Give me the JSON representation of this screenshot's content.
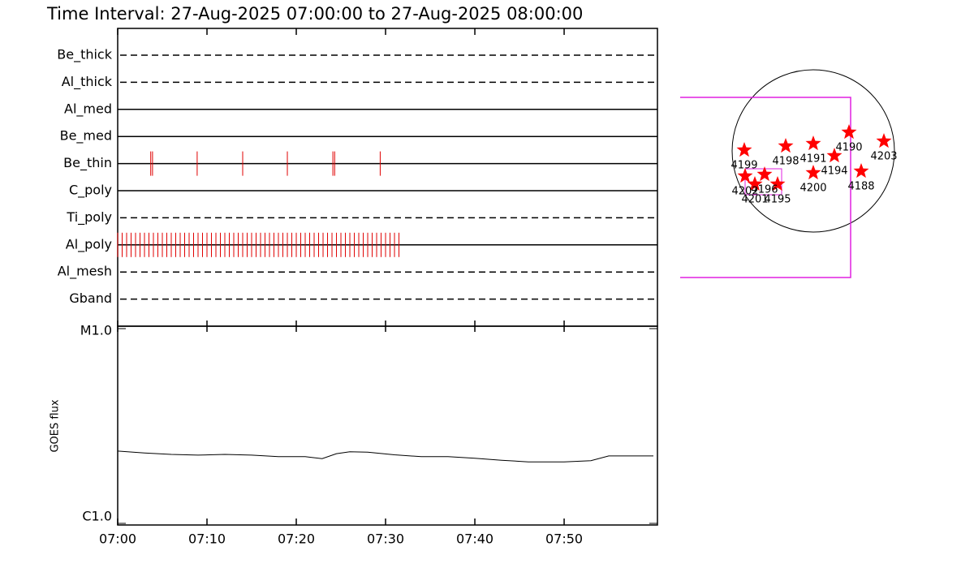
{
  "chart_data": [
    {
      "type": "timeline",
      "title": "Time Interval: 27-Aug-2025 07:00:00 to 27-Aug-2025 08:00:00",
      "categories": [
        "Be_thick",
        "Al_thick",
        "Al_med",
        "Be_med",
        "Be_thin",
        "C_poly",
        "Ti_poly",
        "Al_poly",
        "Al_mesh",
        "Gband"
      ],
      "line_styles": [
        "dashed",
        "dashed",
        "solid",
        "solid",
        "solid",
        "solid",
        "dashed",
        "solid",
        "dashed",
        "dashed"
      ],
      "events": [
        [],
        [],
        [],
        [],
        [
          3.7,
          3.9,
          8.9,
          14,
          19,
          24.1,
          24.3,
          29.4
        ],
        [],
        [],
        [
          0,
          0.5,
          1,
          1.5,
          2,
          2.5,
          3,
          3.5,
          4,
          4.5,
          5,
          5.5,
          6,
          6.5,
          7,
          7.5,
          8,
          8.5,
          9,
          9.5,
          10,
          10.5,
          11,
          11.5,
          12,
          12.5,
          13,
          13.5,
          14,
          14.5,
          15,
          15.5,
          16,
          16.5,
          17,
          17.5,
          18,
          18.5,
          19,
          19.5,
          20,
          20.5,
          21,
          21.5,
          22,
          22.5,
          23,
          23.5,
          24,
          24.5,
          25,
          25.5,
          26,
          26.5,
          27,
          27.5,
          28,
          28.5,
          29,
          29.5,
          30,
          30.5,
          31,
          31.5
        ],
        [],
        []
      ],
      "color": "#e00000"
    },
    {
      "type": "line",
      "ylabel": "GOES flux",
      "x": [
        0,
        3,
        6,
        9,
        12,
        15,
        18,
        21,
        22.9,
        24.5,
        26,
        28,
        31,
        34,
        37,
        40,
        43,
        46,
        50,
        53,
        55,
        60
      ],
      "values": [
        2.35e-06,
        2.3e-06,
        2.26e-06,
        2.24e-06,
        2.26e-06,
        2.24e-06,
        2.2e-06,
        2.2e-06,
        2.15e-06,
        2.28e-06,
        2.33e-06,
        2.32e-06,
        2.25e-06,
        2.2e-06,
        2.2e-06,
        2.16e-06,
        2.11e-06,
        2.07e-06,
        2.07e-06,
        2.1e-06,
        2.22e-06,
        2.22e-06
      ],
      "xlim": [
        0,
        60.45
      ],
      "xticks": [
        {
          "value": 0,
          "label": "07:00"
        },
        {
          "value": 10,
          "label": "07:10"
        },
        {
          "value": 20,
          "label": "07:20"
        },
        {
          "value": 30,
          "label": "07:30"
        },
        {
          "value": 40,
          "label": "07:40"
        },
        {
          "value": 50,
          "label": "07:50"
        }
      ],
      "ylim": [
        1e-06,
        1e-05
      ],
      "yticks": [
        {
          "value": 1e-06,
          "label": "C1.0"
        },
        {
          "value": 1e-05,
          "label": "M1.0"
        }
      ],
      "log_y": true,
      "color": "#000000"
    },
    {
      "type": "disk",
      "labels": [
        "4199",
        "4198",
        "4191",
        "4190",
        "4203",
        "4194",
        "4188",
        "4200",
        "4195",
        "4196",
        "4201",
        "4202"
      ],
      "x": [
        -0.85,
        -0.34,
        0,
        0.44,
        0.87,
        0.26,
        0.59,
        0,
        -0.44,
        -0.6,
        -0.72,
        -0.84
      ],
      "y": [
        0.01,
        0.06,
        0.09,
        0.23,
        0.12,
        -0.06,
        -0.25,
        -0.27,
        -0.41,
        -0.29,
        -0.41,
        -0.31
      ],
      "xlim": [
        -1,
        1
      ],
      "ylim": [
        -1,
        1
      ],
      "color": "#ff0000"
    }
  ]
}
